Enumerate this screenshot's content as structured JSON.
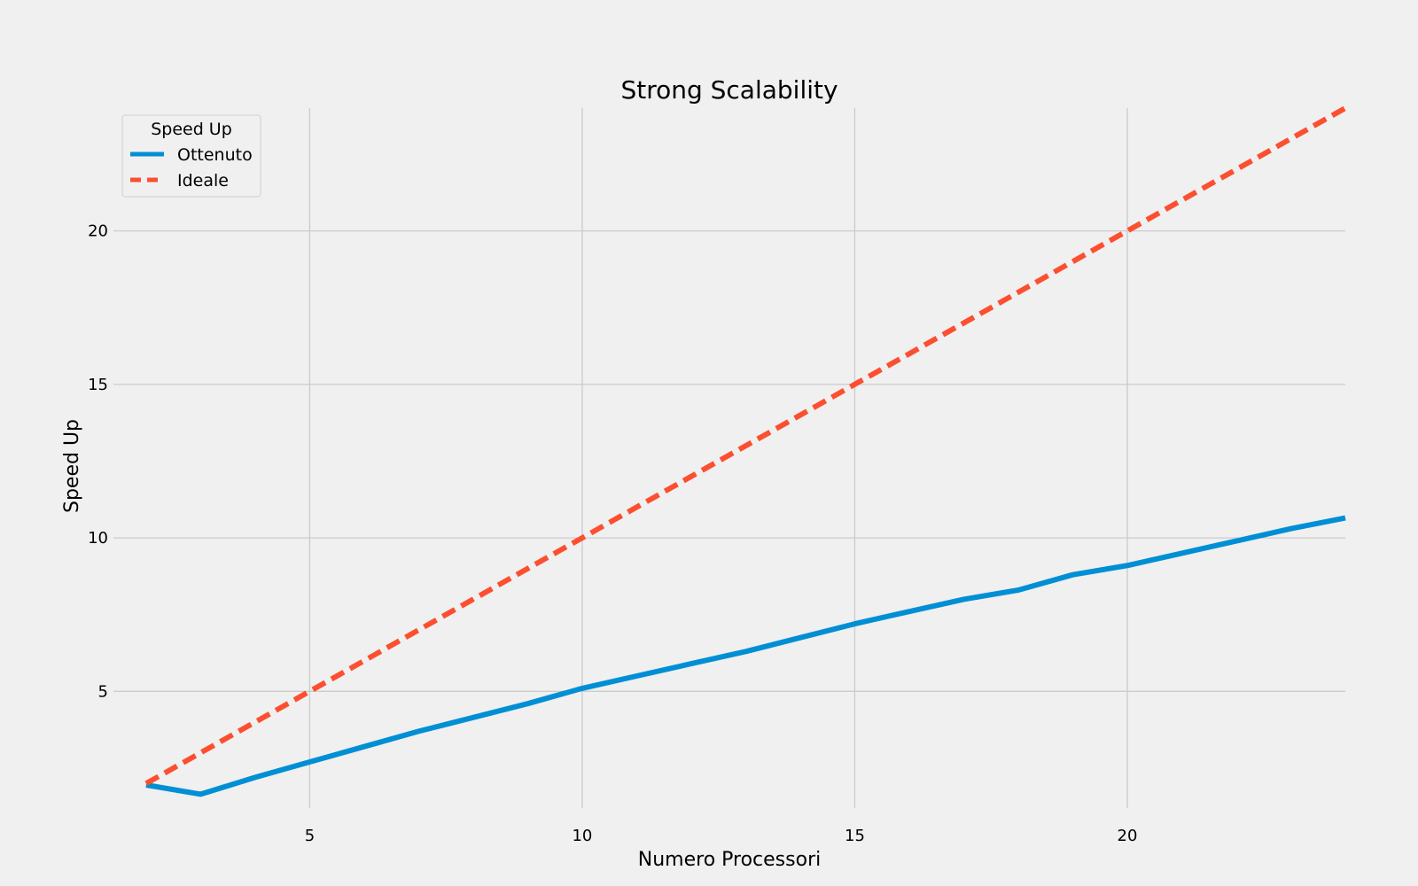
{
  "chart_data": {
    "type": "line",
    "title": "Strong Scalability",
    "xlabel": "Numero Processori",
    "ylabel": "Speed Up",
    "xlim": [
      1.4,
      24
    ],
    "ylim": [
      1.2,
      24
    ],
    "xticks": [
      5,
      10,
      15,
      20
    ],
    "yticks": [
      5,
      10,
      15,
      20
    ],
    "grid": true,
    "legend": {
      "title": "Speed Up",
      "placement": "top-left"
    },
    "series": [
      {
        "name": "Ottenuto",
        "color": "#008fd5",
        "style": "solid",
        "x": [
          2,
          3,
          4,
          5,
          6,
          7,
          8,
          9,
          10,
          11,
          12,
          13,
          14,
          15,
          16,
          17,
          18,
          19,
          20,
          21,
          22,
          23,
          24
        ],
        "y": [
          1.95,
          1.65,
          2.2,
          2.7,
          3.2,
          3.7,
          4.15,
          4.6,
          5.1,
          5.5,
          5.9,
          6.3,
          6.75,
          7.2,
          7.6,
          8.0,
          8.3,
          8.8,
          9.1,
          9.5,
          9.9,
          10.3,
          10.65
        ]
      },
      {
        "name": "Ideale",
        "color": "#fc4f30",
        "style": "dashed",
        "x": [
          2,
          3,
          4,
          5,
          6,
          7,
          8,
          9,
          10,
          11,
          12,
          13,
          14,
          15,
          16,
          17,
          18,
          19,
          20,
          21,
          22,
          23,
          24
        ],
        "y": [
          2,
          3,
          4,
          5,
          6,
          7,
          8,
          9,
          10,
          11,
          12,
          13,
          14,
          15,
          16,
          17,
          18,
          19,
          20,
          21,
          22,
          23,
          24
        ]
      }
    ]
  }
}
